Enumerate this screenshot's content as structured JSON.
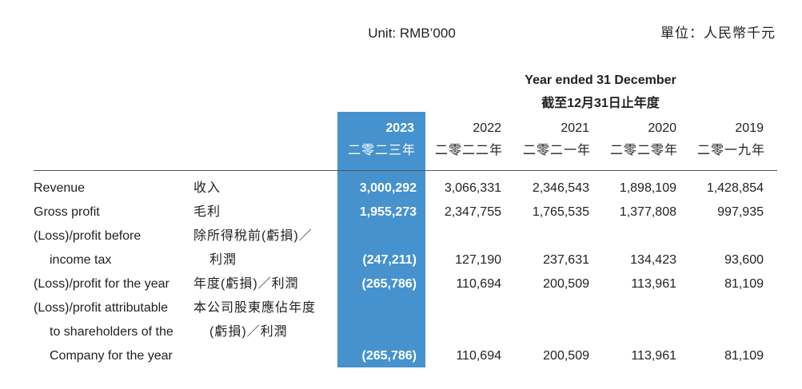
{
  "header": {
    "unit_en": "Unit: RMB’000",
    "unit_zh": "單位：人民幣千元"
  },
  "column_group": {
    "title_en": "Year ended 31 December",
    "title_zh": "截至12月31日止年度"
  },
  "columns": [
    {
      "year": "2023",
      "year_zh": "二零二三年"
    },
    {
      "year": "2022",
      "year_zh": "二零二二年"
    },
    {
      "year": "2021",
      "year_zh": "二零二一年"
    },
    {
      "year": "2020",
      "year_zh": "二零二零年"
    },
    {
      "year": "2019",
      "year_zh": "二零一九年"
    }
  ],
  "rows": [
    {
      "label_en": [
        "Revenue"
      ],
      "label_zh": [
        "收入"
      ],
      "values": [
        "3,000,292",
        "3,066,331",
        "2,346,543",
        "1,898,109",
        "1,428,854"
      ]
    },
    {
      "label_en": [
        "Gross profit"
      ],
      "label_zh": [
        "毛利"
      ],
      "values": [
        "1,955,273",
        "2,347,755",
        "1,765,535",
        "1,377,808",
        "997,935"
      ]
    },
    {
      "label_en": [
        "(Loss)/profit before",
        "income tax"
      ],
      "label_zh": [
        "除所得稅前(虧損)／",
        "利潤"
      ],
      "values": [
        "(247,211)",
        "127,190",
        "237,631",
        "134,423",
        "93,600"
      ]
    },
    {
      "label_en": [
        "(Loss)/profit for the year"
      ],
      "label_zh": [
        "年度(虧損)／利潤"
      ],
      "values": [
        "(265,786)",
        "110,694",
        "200,509",
        "113,961",
        "81,109"
      ]
    },
    {
      "label_en": [
        "(Loss)/profit attributable",
        "to shareholders of the",
        "Company for the year"
      ],
      "label_zh": [
        "本公司股東應佔年度",
        "(虧損)／利潤"
      ],
      "values": [
        "(265,786)",
        "110,694",
        "200,509",
        "113,961",
        "81,109"
      ]
    }
  ]
}
